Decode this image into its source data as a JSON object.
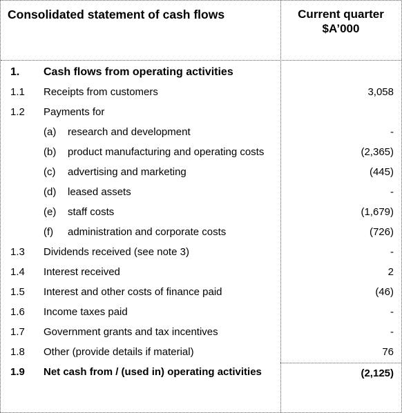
{
  "header": {
    "title": "Consolidated statement of cash flows",
    "column_title": "Current quarter",
    "column_unit": "$A’000"
  },
  "section": {
    "number": "1.",
    "title": "Cash flows from operating activities"
  },
  "rows": [
    {
      "number": "1.1",
      "label": "Receipts from customers",
      "value": "3,058"
    },
    {
      "number": "1.2",
      "label": "Payments for"
    },
    {
      "sub": "(a)",
      "label": "research and development",
      "value": "-"
    },
    {
      "sub": "(b)",
      "label": "product manufacturing and operating costs",
      "value": "(2,365)"
    },
    {
      "sub": "(c)",
      "label": "advertising and marketing",
      "value": "(445)"
    },
    {
      "sub": "(d)",
      "label": "leased assets",
      "value": "-"
    },
    {
      "sub": "(e)",
      "label": "staff costs",
      "value": "(1,679)"
    },
    {
      "sub": "(f)",
      "label": "administration and corporate costs",
      "value": "(726)"
    },
    {
      "number": "1.3",
      "label": "Dividends received (see note 3)",
      "value": "-"
    },
    {
      "number": "1.4",
      "label": "Interest received",
      "value": "2"
    },
    {
      "number": "1.5",
      "label": "Interest and other costs of finance paid",
      "value": "(46)"
    },
    {
      "number": "1.6",
      "label": "Income taxes paid",
      "value": "-"
    },
    {
      "number": "1.7",
      "label": "Government grants and tax incentives",
      "value": "-"
    },
    {
      "number": "1.8",
      "label": "Other (provide details if material)",
      "value": "76"
    },
    {
      "number": "1.9",
      "label": "Net cash from / (used in) operating activities",
      "value": "(2,125)",
      "bold": true
    }
  ]
}
